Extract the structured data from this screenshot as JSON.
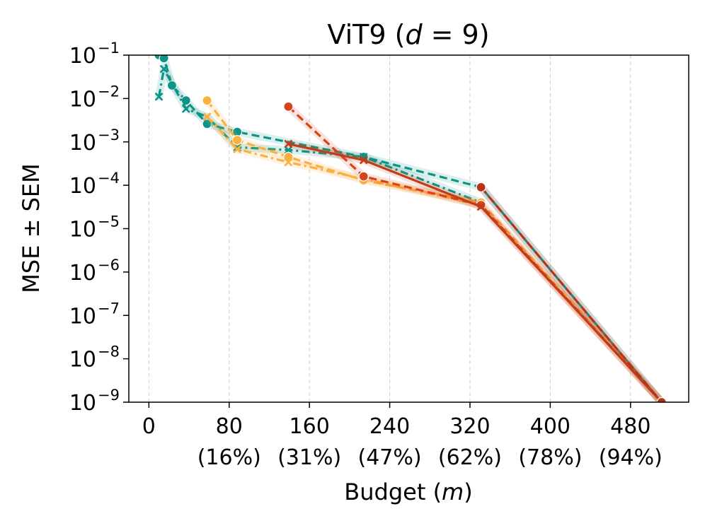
{
  "chart_data": {
    "type": "line",
    "title": "ViT9 (d = 9)",
    "title_parts": {
      "prefix": "ViT9 (",
      "italic": "d",
      "suffix": " = 9)"
    },
    "xlabel": "Budget (m)",
    "xlabel_parts": {
      "prefix": "Budget (",
      "italic": "m",
      "suffix": ")"
    },
    "ylabel": "MSE ± SEM",
    "y_scale": "log",
    "xlim": [
      -20,
      538
    ],
    "ylim_exp": [
      -9,
      -1
    ],
    "x_ticks": [
      0,
      80,
      160,
      240,
      320,
      400,
      480
    ],
    "x_tick_labels": [
      "0",
      "80",
      "160",
      "240",
      "320",
      "400",
      "480"
    ],
    "x_tick_percent_labels": [
      "",
      "(16%)",
      "(31%)",
      "(47%)",
      "(62%)",
      "(78%)",
      "(94%)"
    ],
    "y_tick_base": "10",
    "y_tick_exponents": [
      "−9",
      "−8",
      "−7",
      "−6",
      "−5",
      "−4",
      "−3",
      "−2",
      "−1"
    ],
    "x_grid": true,
    "series": [
      {
        "name": "teal-dashed-circle",
        "color": "#0d9488",
        "dash": "dashed",
        "marker": "circle",
        "x": [
          10,
          15,
          23,
          37,
          58,
          88,
          214,
          331,
          511
        ],
        "y": [
          0.1,
          0.085,
          0.02,
          0.009,
          0.0026,
          0.0017,
          0.00045,
          9e-05,
          1e-09
        ]
      },
      {
        "name": "teal-dashdot-x",
        "color": "#0d9488",
        "dash": "dashdot",
        "marker": "x",
        "x": [
          10,
          15,
          37,
          58,
          88,
          139,
          214,
          331
        ],
        "y": [
          0.011,
          0.048,
          0.0058,
          0.0038,
          0.00075,
          0.00065,
          0.00045,
          4e-05
        ]
      },
      {
        "name": "orange-dashed-circle",
        "color": "#fbb040",
        "dash": "dashed",
        "marker": "circle",
        "x": [
          58,
          88,
          139,
          214,
          331,
          511
        ],
        "y": [
          0.009,
          0.0011,
          0.00045,
          0.00013,
          4e-05,
          1e-09
        ]
      },
      {
        "name": "orange-dashdot-x",
        "color": "#fbb040",
        "dash": "dashdot",
        "marker": "x",
        "x": [
          58,
          88,
          139,
          214,
          331
        ],
        "y": [
          0.0038,
          0.00068,
          0.00034,
          0.00014,
          3.5e-05
        ]
      },
      {
        "name": "red-dashed-circle",
        "color": "#d9421a",
        "dash": "dashed",
        "marker": "circle",
        "x": [
          139,
          214,
          331,
          511
        ],
        "y": [
          0.0065,
          0.00016,
          3.5e-05,
          1e-09
        ]
      },
      {
        "name": "red-solid-x",
        "color": "#c43c17",
        "dash": "solid",
        "marker": "x",
        "x": [
          139,
          214,
          331,
          511
        ],
        "y": [
          0.0009,
          0.00038,
          3.2e-05,
          1e-09
        ]
      },
      {
        "name": "darkred-dashed-circle",
        "color": "#b8321a",
        "dash": "dashed",
        "marker": "circle",
        "x": [
          331,
          511
        ],
        "y": [
          9e-05,
          1e-09
        ]
      }
    ]
  }
}
